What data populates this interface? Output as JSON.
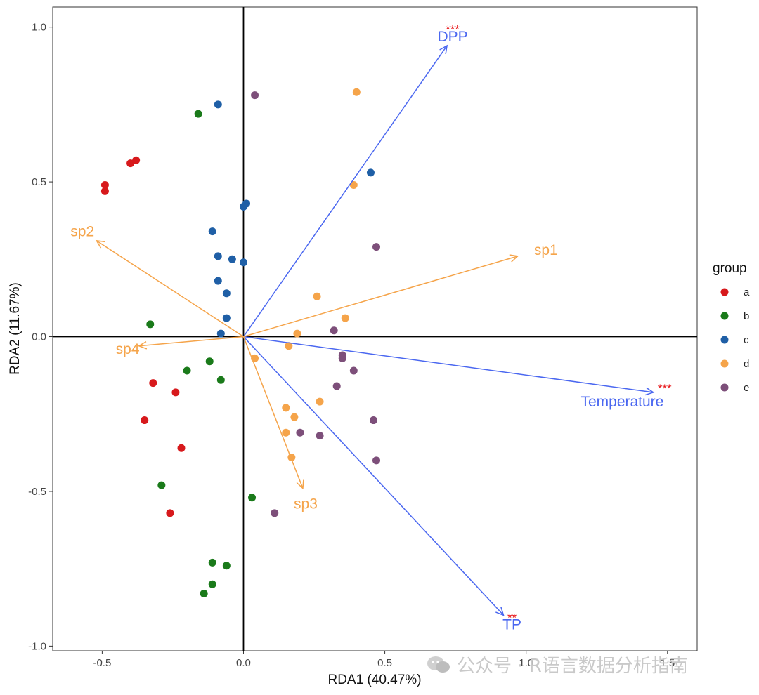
{
  "chart_data": {
    "type": "scatter",
    "subtype": "rda-biplot",
    "xlabel": "RDA1 (40.47%)",
    "ylabel": "RDA2 (11.67%)",
    "xlim": [
      -0.675,
      1.605
    ],
    "ylim": [
      -1.015,
      1.065
    ],
    "xticks": [
      -0.5,
      0.0,
      0.5,
      1.0,
      1.5
    ],
    "xtick_labels": [
      "-0.5",
      "0.0",
      "0.5",
      "1.0",
      "1.5"
    ],
    "yticks": [
      -1.0,
      -0.5,
      0.0,
      0.5,
      1.0
    ],
    "ytick_labels": [
      "-1.0",
      "-0.5",
      "0.0",
      "0.5",
      "1.0"
    ],
    "legend": {
      "title": "group",
      "position": "right",
      "entries": [
        {
          "label": "a",
          "color": "#d7191c"
        },
        {
          "label": "b",
          "color": "#1a7a1a"
        },
        {
          "label": "c",
          "color": "#1f5fa6"
        },
        {
          "label": "d",
          "color": "#f5a44a"
        },
        {
          "label": "e",
          "color": "#7d4f7a"
        }
      ]
    },
    "series": [
      {
        "name": "a",
        "color": "#d7191c",
        "points": [
          [
            -0.4,
            0.56
          ],
          [
            -0.38,
            0.57
          ],
          [
            -0.49,
            0.49
          ],
          [
            -0.49,
            0.47
          ],
          [
            -0.32,
            -0.15
          ],
          [
            -0.24,
            -0.18
          ],
          [
            -0.35,
            -0.27
          ],
          [
            -0.22,
            -0.36
          ],
          [
            -0.26,
            -0.57
          ]
        ]
      },
      {
        "name": "b",
        "color": "#1a7a1a",
        "points": [
          [
            -0.16,
            0.72
          ],
          [
            -0.33,
            0.04
          ],
          [
            -0.2,
            -0.11
          ],
          [
            -0.12,
            -0.08
          ],
          [
            -0.08,
            -0.14
          ],
          [
            -0.29,
            -0.48
          ],
          [
            0.03,
            -0.52
          ],
          [
            -0.11,
            -0.73
          ],
          [
            -0.06,
            -0.74
          ],
          [
            -0.11,
            -0.8
          ],
          [
            -0.14,
            -0.83
          ]
        ]
      },
      {
        "name": "c",
        "color": "#1f5fa6",
        "points": [
          [
            -0.09,
            0.75
          ],
          [
            0.45,
            0.53
          ],
          [
            0.01,
            0.43
          ],
          [
            0.0,
            0.42
          ],
          [
            -0.11,
            0.34
          ],
          [
            -0.09,
            0.26
          ],
          [
            -0.04,
            0.25
          ],
          [
            0.0,
            0.24
          ],
          [
            -0.09,
            0.18
          ],
          [
            -0.06,
            0.14
          ],
          [
            -0.06,
            0.06
          ],
          [
            -0.08,
            0.01
          ]
        ]
      },
      {
        "name": "d",
        "color": "#f5a44a",
        "points": [
          [
            0.4,
            0.79
          ],
          [
            0.39,
            0.49
          ],
          [
            0.26,
            0.13
          ],
          [
            0.36,
            0.06
          ],
          [
            0.19,
            0.01
          ],
          [
            0.16,
            -0.03
          ],
          [
            0.04,
            -0.07
          ],
          [
            0.27,
            -0.21
          ],
          [
            0.15,
            -0.23
          ],
          [
            0.18,
            -0.26
          ],
          [
            0.15,
            -0.31
          ],
          [
            0.17,
            -0.39
          ]
        ]
      },
      {
        "name": "e",
        "color": "#7d4f7a",
        "points": [
          [
            0.04,
            0.78
          ],
          [
            0.47,
            0.29
          ],
          [
            0.32,
            0.02
          ],
          [
            0.35,
            -0.06
          ],
          [
            0.35,
            -0.07
          ],
          [
            0.39,
            -0.11
          ],
          [
            0.33,
            -0.16
          ],
          [
            0.46,
            -0.27
          ],
          [
            0.2,
            -0.31
          ],
          [
            0.27,
            -0.32
          ],
          [
            0.47,
            -0.4
          ],
          [
            0.11,
            -0.57
          ]
        ]
      }
    ],
    "env_vectors": [
      {
        "name": "DPP",
        "x": 0.72,
        "y": 0.94,
        "label_x": 0.74,
        "label_y": 0.97,
        "significance": "***",
        "sig_x": 0.74,
        "sig_y": 1.0
      },
      {
        "name": "Temperature",
        "x": 1.45,
        "y": -0.18,
        "label_x": 1.34,
        "label_y": -0.21,
        "significance": "***",
        "sig_x": 1.49,
        "sig_y": -0.16
      },
      {
        "name": "TP",
        "x": 0.92,
        "y": -0.9,
        "label_x": 0.95,
        "label_y": -0.93,
        "significance": "**",
        "sig_x": 0.95,
        "sig_y": -0.9
      }
    ],
    "species_vectors": [
      {
        "name": "sp1",
        "x": 0.97,
        "y": 0.26,
        "label_x": 1.07,
        "label_y": 0.28
      },
      {
        "name": "sp2",
        "x": -0.52,
        "y": 0.31,
        "label_x": -0.57,
        "label_y": 0.34
      },
      {
        "name": "sp3",
        "x": 0.21,
        "y": -0.49,
        "label_x": 0.22,
        "label_y": -0.54
      },
      {
        "name": "sp4",
        "x": -0.37,
        "y": -0.03,
        "label_x": -0.41,
        "label_y": -0.04
      }
    ],
    "colors": {
      "env": "#4a67f0",
      "species": "#f5a44a",
      "significance": "#e8191c",
      "axis_lines": "#000000"
    }
  },
  "watermark": {
    "text": "公众号 · R语言数据分析指南"
  }
}
